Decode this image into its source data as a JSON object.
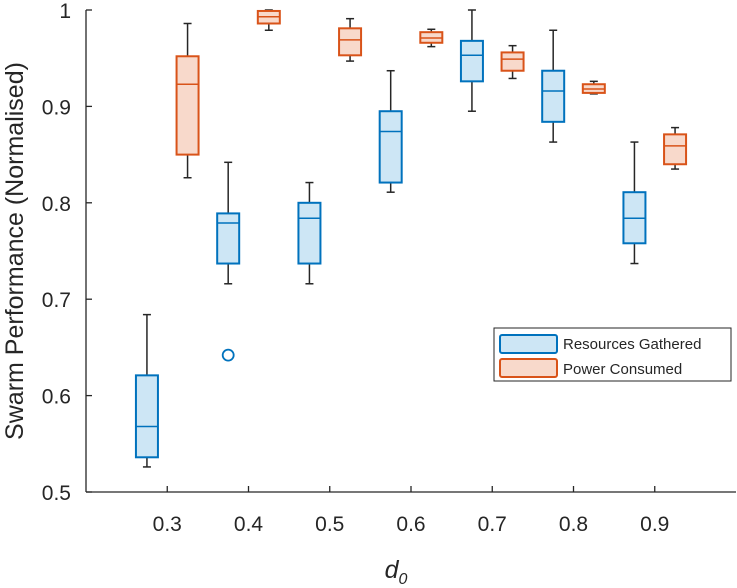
{
  "chart_data": {
    "type": "boxplot",
    "title": "",
    "xlabel": "d",
    "xlabel_subscript": "0",
    "ylabel": "Swarm Performance (Normalised)",
    "ylim": [
      0.5,
      1.0
    ],
    "xlim": [
      0.2,
      1.0
    ],
    "xticks": [
      0.3,
      0.4,
      0.5,
      0.6,
      0.7,
      0.8,
      0.9
    ],
    "xtick_labels": [
      "0.3",
      "0.4",
      "0.5",
      "0.6",
      "0.7",
      "0.8",
      "0.9"
    ],
    "yticks": [
      0.5,
      0.6,
      0.7,
      0.8,
      0.9,
      1.0
    ],
    "ytick_labels": [
      "0.5",
      "0.6",
      "0.7",
      "0.8",
      "0.9",
      "1"
    ],
    "legend_position": "right",
    "series": [
      {
        "name": "Resources Gathered",
        "edge_color": "#0072BD",
        "fill_color": "#CDE6F5",
        "boxes": [
          {
            "x": 0.275,
            "whisker_low": 0.526,
            "q1": 0.536,
            "median": 0.568,
            "q3": 0.621,
            "whisker_high": 0.684,
            "outliers": []
          },
          {
            "x": 0.375,
            "whisker_low": 0.716,
            "q1": 0.737,
            "median": 0.779,
            "q3": 0.789,
            "whisker_high": 0.842,
            "outliers": [
              0.642
            ]
          },
          {
            "x": 0.475,
            "whisker_low": 0.716,
            "q1": 0.737,
            "median": 0.784,
            "q3": 0.8,
            "whisker_high": 0.821,
            "outliers": []
          },
          {
            "x": 0.575,
            "whisker_low": 0.811,
            "q1": 0.821,
            "median": 0.874,
            "q3": 0.895,
            "whisker_high": 0.937,
            "outliers": []
          },
          {
            "x": 0.675,
            "whisker_low": 0.895,
            "q1": 0.926,
            "median": 0.953,
            "q3": 0.968,
            "whisker_high": 1.0,
            "outliers": []
          },
          {
            "x": 0.775,
            "whisker_low": 0.863,
            "q1": 0.884,
            "median": 0.916,
            "q3": 0.937,
            "whisker_high": 0.979,
            "outliers": []
          },
          {
            "x": 0.875,
            "whisker_low": 0.737,
            "q1": 0.758,
            "median": 0.784,
            "q3": 0.811,
            "whisker_high": 0.863,
            "outliers": []
          }
        ]
      },
      {
        "name": "Power Consumed",
        "edge_color": "#D95319",
        "fill_color": "#F8D9CB",
        "boxes": [
          {
            "x": 0.325,
            "whisker_low": 0.826,
            "q1": 0.85,
            "median": 0.923,
            "q3": 0.952,
            "whisker_high": 0.986,
            "outliers": []
          },
          {
            "x": 0.425,
            "whisker_low": 0.979,
            "q1": 0.986,
            "median": 0.993,
            "q3": 0.999,
            "whisker_high": 1.0,
            "outliers": []
          },
          {
            "x": 0.525,
            "whisker_low": 0.947,
            "q1": 0.953,
            "median": 0.969,
            "q3": 0.981,
            "whisker_high": 0.991,
            "outliers": []
          },
          {
            "x": 0.625,
            "whisker_low": 0.962,
            "q1": 0.966,
            "median": 0.971,
            "q3": 0.977,
            "whisker_high": 0.98,
            "outliers": []
          },
          {
            "x": 0.725,
            "whisker_low": 0.929,
            "q1": 0.937,
            "median": 0.949,
            "q3": 0.956,
            "whisker_high": 0.963,
            "outliers": []
          },
          {
            "x": 0.825,
            "whisker_low": 0.913,
            "q1": 0.914,
            "median": 0.918,
            "q3": 0.923,
            "whisker_high": 0.926,
            "outliers": []
          },
          {
            "x": 0.925,
            "whisker_low": 0.835,
            "q1": 0.84,
            "median": 0.859,
            "q3": 0.871,
            "whisker_high": 0.878,
            "outliers": []
          }
        ]
      }
    ]
  }
}
